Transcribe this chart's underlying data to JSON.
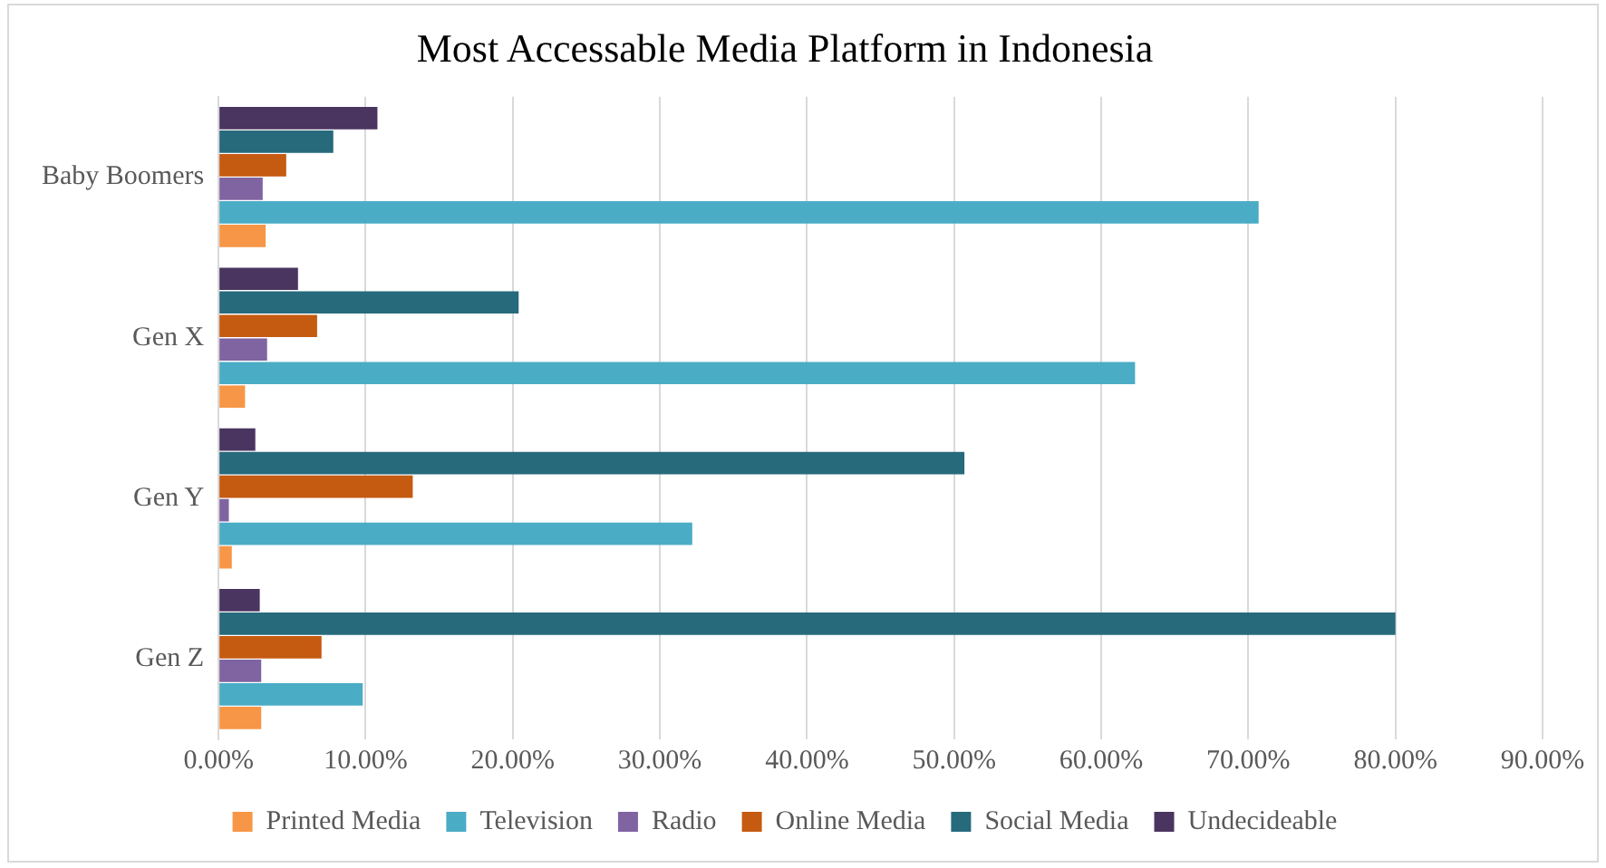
{
  "chart_data": {
    "type": "bar",
    "orientation": "horizontal",
    "title": "Most Accessable Media Platform in Indonesia",
    "categories": [
      "Baby Boomers",
      "Gen X",
      "Gen Y",
      "Gen Z"
    ],
    "series": [
      {
        "name": "Printed Media",
        "color": "#f79646",
        "values": [
          3.2,
          1.8,
          0.9,
          2.9
        ]
      },
      {
        "name": "Television",
        "color": "#4bacc6",
        "values": [
          70.7,
          62.3,
          32.2,
          9.8
        ]
      },
      {
        "name": "Radio",
        "color": "#8064a2",
        "values": [
          3.0,
          3.3,
          0.7,
          2.9
        ]
      },
      {
        "name": "Online Media",
        "color": "#c55a11",
        "values": [
          4.6,
          6.7,
          13.2,
          7.0
        ]
      },
      {
        "name": "Social Media",
        "color": "#276a7c",
        "values": [
          7.8,
          20.4,
          50.7,
          80.0
        ]
      },
      {
        "name": "Undecideable",
        "color": "#4a3560",
        "values": [
          10.8,
          5.4,
          2.5,
          2.8
        ]
      }
    ],
    "xlim": [
      0,
      90
    ],
    "xticks": [
      {
        "value": 0,
        "label": "0.00%"
      },
      {
        "value": 10,
        "label": "10.00%"
      },
      {
        "value": 20,
        "label": "20.00%"
      },
      {
        "value": 30,
        "label": "30.00%"
      },
      {
        "value": 40,
        "label": "40.00%"
      },
      {
        "value": 50,
        "label": "50.00%"
      },
      {
        "value": 60,
        "label": "60.00%"
      },
      {
        "value": 70,
        "label": "70.00%"
      },
      {
        "value": 80,
        "label": "80.00%"
      },
      {
        "value": 90,
        "label": "90.00%"
      }
    ],
    "grid": "x",
    "legend": "bottom"
  }
}
